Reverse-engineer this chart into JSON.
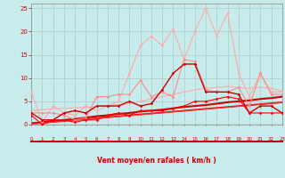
{
  "background_color": "#c8ecec",
  "grid_color": "#aacccc",
  "xlabel": "Vent moyen/en rafales ( km/h )",
  "xlabel_color": "#cc0000",
  "tick_color": "#cc0000",
  "ylabel_ticks": [
    0,
    5,
    10,
    15,
    20,
    25
  ],
  "xlim": [
    0,
    23
  ],
  "ylim": [
    0,
    26
  ],
  "x": [
    0,
    1,
    2,
    3,
    4,
    5,
    6,
    7,
    8,
    9,
    10,
    11,
    12,
    13,
    14,
    15,
    16,
    17,
    18,
    19,
    20,
    21,
    22,
    23
  ],
  "series": [
    {
      "color": "#ffaaaa",
      "lw": 0.8,
      "marker": true,
      "values": [
        7,
        0.5,
        4,
        2.5,
        2,
        4,
        3,
        4,
        5,
        11,
        17,
        19,
        17,
        20.5,
        14,
        20,
        25,
        19,
        24,
        11,
        6,
        11,
        7,
        7
      ]
    },
    {
      "color": "#ff8888",
      "lw": 0.8,
      "marker": true,
      "values": [
        2.5,
        2.5,
        2.5,
        2,
        1,
        1.5,
        6,
        6,
        6.5,
        6.5,
        9.5,
        6,
        7,
        6,
        14,
        13.5,
        7.5,
        7,
        7,
        8,
        4,
        11,
        6.5,
        6.5
      ]
    },
    {
      "color": "#cc0000",
      "lw": 1.0,
      "marker": true,
      "values": [
        2.5,
        1,
        1,
        2.5,
        3,
        2.5,
        4,
        4,
        4,
        5,
        4,
        4.5,
        7.5,
        11,
        13,
        13,
        7,
        7,
        7,
        6.5,
        2.5,
        4,
        4,
        2.5
      ]
    },
    {
      "color": "#ff0000",
      "lw": 0.8,
      "marker": true,
      "values": [
        2,
        0,
        1,
        1,
        0.5,
        1,
        1,
        2,
        2.5,
        2,
        3,
        3,
        3,
        3.5,
        4,
        5,
        5,
        5.5,
        6,
        5.5,
        2.5,
        2.5,
        2.5,
        2.5
      ]
    },
    {
      "color": "#cc0000",
      "lw": 1.5,
      "marker": false,
      "values": [
        0.3,
        0.5,
        0.8,
        1.0,
        1.2,
        1.5,
        1.8,
        2.0,
        2.3,
        2.5,
        2.8,
        3.0,
        3.2,
        3.5,
        3.8,
        4.0,
        4.2,
        4.5,
        4.8,
        5.0,
        5.2,
        5.5,
        5.7,
        6.0
      ]
    },
    {
      "color": "#ff0000",
      "lw": 1.2,
      "marker": false,
      "values": [
        0.2,
        0.4,
        0.6,
        0.8,
        1.0,
        1.2,
        1.4,
        1.6,
        1.8,
        2.0,
        2.2,
        2.4,
        2.6,
        2.8,
        3.0,
        3.2,
        3.4,
        3.6,
        3.8,
        4.0,
        4.2,
        4.4,
        4.6,
        4.8
      ]
    },
    {
      "color": "#dd4444",
      "lw": 0.8,
      "marker": false,
      "values": [
        0.1,
        0.3,
        0.5,
        0.7,
        0.9,
        1.1,
        1.3,
        1.5,
        1.7,
        1.9,
        2.1,
        2.3,
        2.5,
        2.7,
        2.9,
        3.1,
        3.3,
        3.5,
        3.7,
        3.9,
        4.1,
        4.3,
        4.5,
        4.7
      ]
    },
    {
      "color": "#ffaaaa",
      "lw": 0.8,
      "marker": false,
      "values": [
        3.0,
        3.2,
        3.4,
        3.5,
        3.6,
        3.7,
        3.9,
        4.1,
        4.3,
        4.5,
        5.0,
        5.5,
        6.0,
        6.5,
        7.0,
        7.5,
        7.8,
        8.0,
        8.2,
        8.0,
        7.8,
        8.0,
        7.8,
        7.2
      ]
    }
  ],
  "wind_arrows": [
    "↗",
    "↙",
    "↘",
    "↗",
    "↖",
    "↓",
    "↗",
    "↙",
    "↘",
    "↙",
    "↗",
    "↓",
    "↘",
    "↙",
    "↓",
    "↙",
    "↓",
    "↙",
    "↙",
    "↙",
    "↗",
    "↗",
    "↑",
    "↗"
  ]
}
